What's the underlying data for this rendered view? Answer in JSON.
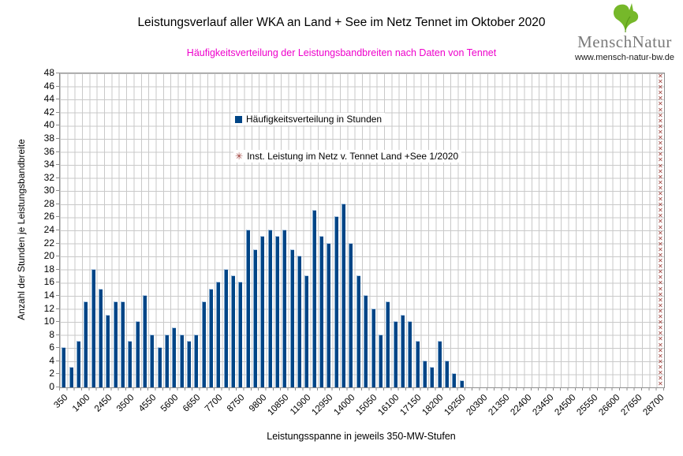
{
  "page": {
    "title": "Leistungsverlauf aller WKA an Land + See im Netz Tennet im Oktober 2020",
    "subtitle": "Häufigkeitsverteilung der Leistungsbandbreiten nach Daten von Tennet",
    "subtitle_color": "#ee00cc"
  },
  "logo": {
    "brand": "MenschNatur",
    "url": "www.mensch-natur-bw.de",
    "leaf_color": "#76b82a"
  },
  "chart_data": {
    "type": "bar",
    "title": "Leistungsverlauf aller WKA an Land + See im Netz Tennet im Oktober 2020",
    "subtitle": "Häufigkeitsverteilung der Leistungsbandbreiten nach Daten von Tennet",
    "xlabel": "Leistungsspanne in jeweils 350-MW-Stufen",
    "ylabel": "Anzahl der Stunden je Leistungsbandbreite",
    "ylim": [
      0,
      48
    ],
    "ytick_step": 2,
    "grid": true,
    "bar_color": "#004586",
    "marker_color": "#9c3b36",
    "categories": [
      350,
      700,
      1050,
      1400,
      1750,
      2100,
      2450,
      2800,
      3150,
      3500,
      3850,
      4200,
      4550,
      4900,
      5250,
      5600,
      5950,
      6300,
      6650,
      7000,
      7350,
      7700,
      8050,
      8400,
      8750,
      9100,
      9450,
      9800,
      10150,
      10500,
      10850,
      11200,
      11550,
      11900,
      12250,
      12600,
      12950,
      13300,
      13650,
      14000,
      14350,
      14700,
      15050,
      15400,
      15750,
      16100,
      16450,
      16800,
      17150,
      17500,
      17850,
      18200,
      18550,
      18900,
      19250,
      19600,
      19950,
      20300,
      20650,
      21000,
      21350,
      21700,
      22050,
      22400,
      22750,
      23100,
      23450,
      23800,
      24150,
      24500,
      24850,
      25200,
      25550,
      25900,
      26250,
      26600,
      26950,
      27300,
      27650,
      28000,
      28350,
      28700
    ],
    "series": [
      {
        "name": "Häufigkeitsverteilung in Stunden",
        "values": [
          6,
          3,
          7,
          13,
          18,
          15,
          11,
          13,
          13,
          7,
          10,
          14,
          8,
          6,
          8,
          9,
          8,
          7,
          8,
          13,
          15,
          16,
          18,
          17,
          16,
          24,
          21,
          23,
          24,
          23,
          24,
          21,
          20,
          17,
          27,
          23,
          22,
          26,
          28,
          22,
          17,
          14,
          12,
          8,
          13,
          10,
          11,
          10,
          7,
          4,
          3,
          7,
          4,
          2,
          1,
          0,
          0,
          0,
          0,
          0,
          0,
          0,
          0,
          0,
          0,
          0,
          0,
          0,
          0,
          0,
          0,
          0,
          0,
          0,
          0,
          0,
          0,
          0,
          0,
          0,
          0,
          0
        ]
      },
      {
        "name": "Inst. Leistung im Netz v. Tennet  Land +See 1/2020",
        "marker": "x-column",
        "x_mw": 28700,
        "spans_full_height": true
      }
    ],
    "x_axis_label_values": [
      350,
      1400,
      2450,
      3500,
      4550,
      5600,
      6650,
      7700,
      8750,
      9800,
      10850,
      11900,
      12950,
      14000,
      15050,
      16100,
      17150,
      18200,
      19250,
      20300,
      21350,
      22400,
      23450,
      24500,
      25550,
      26600,
      27650,
      28700
    ],
    "legend": {
      "position": "inside-upper-middle",
      "items": [
        {
          "label": "Häufigkeitsverteilung in Stunden",
          "marker": "square",
          "color": "#004586"
        },
        {
          "label": "Inst. Leistung im Netz v. Tennet  Land +See 1/2020",
          "marker": "x-cross",
          "color": "#9c3b36"
        }
      ]
    }
  }
}
